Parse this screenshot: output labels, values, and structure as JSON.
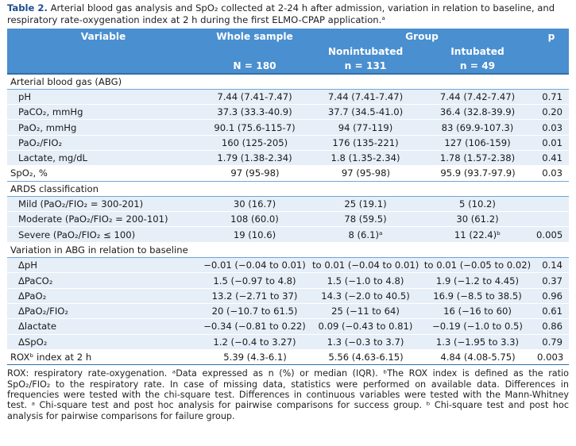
{
  "caption": {
    "label": "Table 2.",
    "text": "Arterial blood gas analysis and SpO₂ collected at 2-24 h after admission, variation in relation to baseline, and respiratory rate-oxygenation index at 2 h during the first ELMO-CPAP application.ᵃ"
  },
  "header": {
    "variable": "Variable",
    "whole_sample": "Whole sample",
    "group": "Group",
    "p": "p",
    "nonintubated": "Nonintubated",
    "intubated": "Intubated",
    "n_whole": "N = 180",
    "n_nonintubated": "n = 131",
    "n_intubated": "n = 49"
  },
  "rows": [
    {
      "type": "section",
      "label": "Arterial blood gas (ABG)"
    },
    {
      "type": "row",
      "label": "pH",
      "whole": "7.44 (7.41-7.47)",
      "nonint": "7.44 (7.41-7.47)",
      "int": "7.44 (7.42-7.47)",
      "p": "0.71"
    },
    {
      "type": "row",
      "label": "PaCO₂, mmHg",
      "whole": "37.3 (33.3-40.9)",
      "nonint": "37.7 (34.5-41.0)",
      "int": "36.4 (32.8-39.9)",
      "p": "0.20"
    },
    {
      "type": "row",
      "label": "PaO₂, mmHg",
      "whole": "90.1 (75.6-115-7)",
      "nonint": "94 (77-119)",
      "int": "83 (69.9-107.3)",
      "p": "0.03"
    },
    {
      "type": "row",
      "label": "PaO₂/FIO₂",
      "whole": "160 (125-205)",
      "nonint": "176 (135-221)",
      "int": "127 (106-159)",
      "p": "0.01"
    },
    {
      "type": "row",
      "label": "Lactate, mg/dL",
      "whole": "1.79 (1.38-2.34)",
      "nonint": "1.8 (1.35-2.34)",
      "int": "1.78 (1.57-2.38)",
      "p": "0.41"
    },
    {
      "type": "section-data",
      "label": "SpO₂, %",
      "whole": "97 (95-98)",
      "nonint": "97 (95-98)",
      "int": "95.9 (93.7-97.9)",
      "p": "0.03"
    },
    {
      "type": "section",
      "label": "ARDS classification"
    },
    {
      "type": "row",
      "label": "Mild (PaO₂/FIO₂ = 300-201)",
      "whole": "30 (16.7)",
      "nonint": "25 (19.1)",
      "int": "5 (10.2)",
      "p": ""
    },
    {
      "type": "row",
      "label": "Moderate (PaO₂/FIO₂ = 200-101)",
      "whole": "108 (60.0)",
      "nonint": "78 (59.5)",
      "int": "30 (61.2)",
      "p": ""
    },
    {
      "type": "row",
      "label": "Severe (PaO₂/FIO₂ ≤ 100)",
      "whole": "19 (10.6)",
      "nonint": "8 (6.1)ᵃ",
      "int": "11 (22.4)ᵇ",
      "p": "0.005"
    },
    {
      "type": "section",
      "label": "Variation in ABG in relation to baseline"
    },
    {
      "type": "row",
      "label": "ΔpH",
      "whole": "−0.01 (−0.04 to 0.01)",
      "nonint": "to 0.01 (−0.04 to 0.01)",
      "int": "to 0.01 (−0.05 to 0.02)",
      "p": "0.14"
    },
    {
      "type": "row",
      "label": "ΔPaCO₂",
      "whole": "1.5 (−0.97 to 4.8)",
      "nonint": "1.5 (−1.0 to 4.8)",
      "int": "1.9 (−1.2 to 4.45)",
      "p": "0.37"
    },
    {
      "type": "row",
      "label": "ΔPaO₂",
      "whole": "13.2 (−2.71 to 37)",
      "nonint": "14.3 (−2.0 to 40.5)",
      "int": "16.9 (−8.5 to 38.5)",
      "p": "0.96"
    },
    {
      "type": "row",
      "label": "ΔPaO₂/FIO₂",
      "whole": "20 (−10.7 to 61.5)",
      "nonint": "25 (−11 to 64)",
      "int": "16 (−16 to 60)",
      "p": "0.61"
    },
    {
      "type": "row",
      "label": "Δlactate",
      "whole": "−0.34 (−0.81 to 0.22)",
      "nonint": "0.09 (−0.43 to 0.81)",
      "int": "−0.19 (−1.0 to 0.5)",
      "p": "0.86"
    },
    {
      "type": "row",
      "label": "ΔSpO₂",
      "whole": "1.2 (−0.4 to 3.27)",
      "nonint": "1.3 (−0.3 to 3.7)",
      "int": "1.3 (−1.95 to 3.3)",
      "p": "0.79"
    },
    {
      "type": "section-data-last",
      "label": "ROXᵇ index at 2 h",
      "whole": "5.39 (4.3-6.1)",
      "nonint": "5.56 (4.63-6.15)",
      "int": "4.84 (4.08-5.75)",
      "p": "0.003"
    }
  ],
  "footnote": "ROX: respiratory rate-oxygenation. ᵃData expressed as n (%) or median (IQR). ᵇThe ROX index is defined as the ratio SpO₂/FIO₂ to the respiratory rate. In case of missing data, statistics were performed on available data. Differences in frequencies were tested with the chi-square test. Differences in continuous variables were tested with the Mann-Whitney test. ᵃ Chi-square test and post hoc analysis for pairwise comparisons for success group. ᵇ Chi-square test and post hoc analysis for pairwise comparisons for failure group."
}
